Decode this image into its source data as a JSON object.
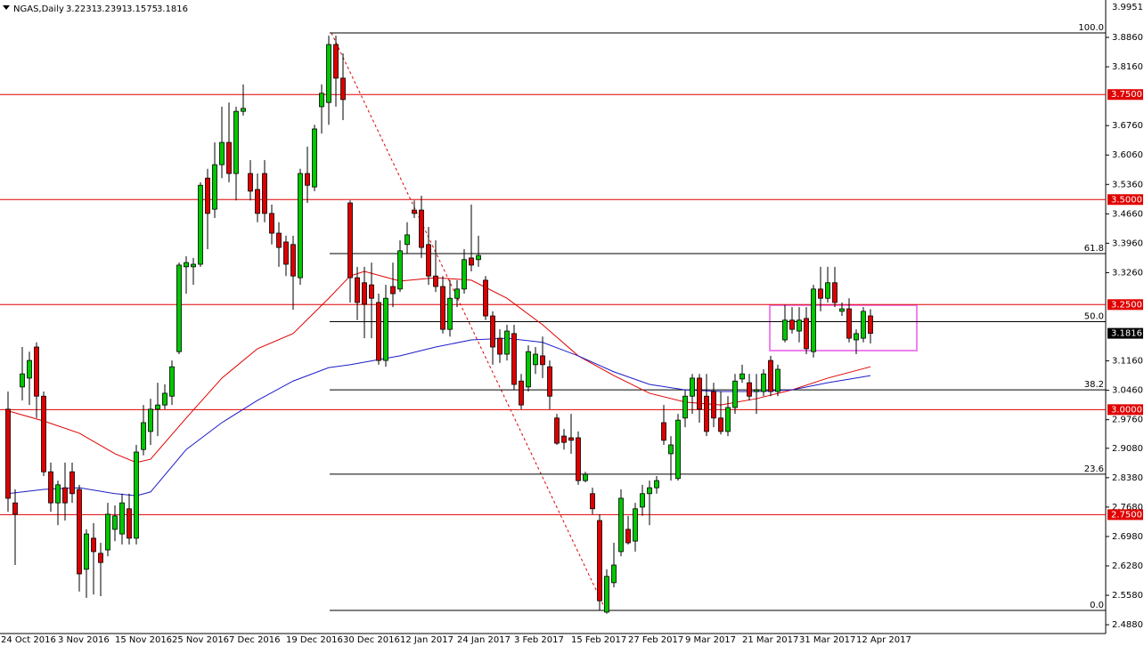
{
  "chart_data": {
    "type": "candlestick",
    "symbol": "NGAS,Daily",
    "up_color": "#00c800",
    "down_color": "#dd0000",
    "categories": [
      "24 Oct 2016",
      null,
      null,
      null,
      null,
      null,
      null,
      null,
      "3 Nov 2016",
      null,
      null,
      null,
      null,
      null,
      null,
      null,
      "15 Nov 2016",
      null,
      null,
      null,
      null,
      null,
      null,
      null,
      "25 Nov 2016",
      null,
      null,
      null,
      null,
      null,
      null,
      null,
      "7 Dec 2016",
      null,
      null,
      null,
      null,
      null,
      null,
      null,
      "19 Dec 2016",
      null,
      null,
      null,
      null,
      null,
      null,
      null,
      "30 Dec 2016",
      null,
      null,
      null,
      null,
      null,
      null,
      null,
      "12 Jan 2017",
      null,
      null,
      null,
      null,
      null,
      null,
      null,
      "24 Jan 2017",
      null,
      null,
      null,
      null,
      null,
      null,
      null,
      "3 Feb 2017",
      null,
      null,
      null,
      null,
      null,
      null,
      null,
      "15 Feb 2017",
      null,
      null,
      null,
      null,
      null,
      null,
      null,
      "27 Feb 2017",
      null,
      null,
      null,
      null,
      null,
      null,
      null,
      "9 Mar 2017",
      null,
      null,
      null,
      null,
      null,
      null,
      null,
      "21 Mar 2017",
      null,
      null,
      null,
      null,
      null,
      null,
      null,
      "31 Mar 2017",
      null,
      null,
      null,
      null,
      null,
      null,
      null,
      "12 Apr 2017",
      null
    ],
    "open": [
      3.001,
      2.778,
      3.054,
      3.075,
      3.149,
      3.032,
      2.852,
      2.778,
      2.814,
      2.852,
      2.81,
      2.62,
      2.694,
      2.658,
      2.666,
      2.715,
      2.704,
      2.764,
      2.694,
      2.905,
      2.948,
      3.001,
      3.011,
      3.032,
      3.138,
      3.34,
      3.34,
      3.346,
      3.551,
      3.477,
      3.583,
      3.636,
      3.562,
      3.71,
      3.562,
      3.524,
      3.562,
      3.467,
      3.42,
      3.399,
      3.393,
      3.314,
      3.562,
      3.53,
      3.721,
      3.731,
      3.869,
      3.789,
      3.492,
      3.314,
      3.302,
      3.297,
      3.255,
      3.117,
      3.293,
      3.287,
      3.393,
      3.475,
      3.475,
      3.393,
      3.318,
      3.293,
      3.191,
      3.265,
      3.287,
      3.361,
      3.357,
      3.308,
      3.223,
      3.17,
      3.132,
      3.181,
      3.068,
      3.054,
      3.107,
      3.128,
      3.102,
      2.98,
      2.937,
      2.933,
      2.933,
      2.831,
      2.8,
      2.736,
      2.518,
      2.588,
      2.662,
      2.715,
      2.687,
      2.768,
      2.8,
      2.814,
      2.969,
      2.895,
      2.836,
      2.98,
      3.032,
      3.075,
      3.032,
      3.043,
      2.98,
      2.948,
      3.005,
      3.073,
      3.064,
      3.043,
      3.043,
      3.117,
      3.043,
      3.166,
      3.213,
      3.187,
      3.217,
      3.138,
      3.287,
      3.265,
      3.302,
      3.234,
      3.24,
      3.166,
      3.17,
      3.2231
    ],
    "high": [
      3.043,
      2.81,
      3.149,
      3.138,
      3.16,
      3.043,
      2.874,
      2.831,
      2.874,
      2.874,
      2.821,
      2.715,
      2.73,
      2.683,
      2.778,
      2.772,
      2.8,
      2.8,
      2.916,
      3.011,
      3.026,
      3.064,
      3.06,
      3.117,
      3.35,
      3.365,
      3.361,
      3.541,
      3.573,
      3.636,
      3.721,
      3.731,
      3.721,
      3.774,
      3.594,
      3.562,
      3.594,
      3.488,
      3.446,
      3.414,
      3.414,
      3.573,
      3.626,
      3.678,
      3.774,
      3.89,
      3.89,
      3.848,
      3.498,
      3.34,
      3.34,
      3.35,
      3.276,
      3.297,
      3.35,
      3.403,
      3.446,
      3.498,
      3.509,
      3.435,
      3.403,
      3.318,
      3.308,
      3.308,
      3.382,
      3.488,
      3.414,
      3.318,
      3.234,
      3.191,
      3.202,
      3.202,
      3.085,
      3.153,
      3.149,
      3.174,
      3.117,
      2.99,
      2.954,
      2.99,
      2.948,
      2.852,
      2.814,
      2.751,
      2.62,
      2.683,
      2.81,
      2.747,
      2.778,
      2.821,
      2.831,
      2.842,
      3.011,
      2.937,
      2.99,
      3.047,
      3.085,
      3.085,
      3.085,
      3.064,
      3.043,
      3.032,
      3.085,
      3.107,
      3.085,
      3.085,
      3.096,
      3.128,
      3.107,
      3.249,
      3.244,
      3.244,
      3.244,
      3.297,
      3.34,
      3.34,
      3.34,
      3.255,
      3.265,
      3.191,
      3.244,
      3.2391
    ],
    "low": [
      2.757,
      2.63,
      3.022,
      3.011,
      2.98,
      2.842,
      2.757,
      2.725,
      2.736,
      2.778,
      2.567,
      2.552,
      2.56,
      2.556,
      2.651,
      2.687,
      2.679,
      2.679,
      2.679,
      2.891,
      2.916,
      2.937,
      3.001,
      3.011,
      3.132,
      3.276,
      3.297,
      3.34,
      3.382,
      3.456,
      3.551,
      3.541,
      3.498,
      3.7,
      3.498,
      3.446,
      3.446,
      3.393,
      3.34,
      3.318,
      3.238,
      3.297,
      3.492,
      3.52,
      3.657,
      3.678,
      3.721,
      3.689,
      3.255,
      3.213,
      3.17,
      3.17,
      3.107,
      3.102,
      3.244,
      3.28,
      3.371,
      3.456,
      3.361,
      3.297,
      3.28,
      3.181,
      3.174,
      3.244,
      3.276,
      3.329,
      3.34,
      3.213,
      3.107,
      3.111,
      3.117,
      3.047,
      3.001,
      3.043,
      3.085,
      3.075,
      3.001,
      2.916,
      2.905,
      2.895,
      2.821,
      2.827,
      2.751,
      2.522,
      2.514,
      2.577,
      2.651,
      2.679,
      2.662,
      2.747,
      2.725,
      2.8,
      2.916,
      2.831,
      2.831,
      2.958,
      2.99,
      2.969,
      2.937,
      2.958,
      2.941,
      2.937,
      2.99,
      3.064,
      3.022,
      2.99,
      3.032,
      3.032,
      3.032,
      3.16,
      3.181,
      3.16,
      3.132,
      3.124,
      3.234,
      3.255,
      3.244,
      3.223,
      3.16,
      3.132,
      3.16,
      3.1575
    ],
    "close": [
      2.789,
      2.751,
      3.085,
      3.117,
      3.032,
      2.852,
      2.778,
      2.821,
      2.778,
      2.8,
      2.609,
      2.704,
      2.662,
      2.636,
      2.751,
      2.747,
      2.778,
      2.694,
      2.899,
      2.969,
      3.001,
      3.011,
      3.039,
      3.102,
      3.344,
      3.35,
      3.346,
      3.534,
      3.467,
      3.583,
      3.636,
      3.562,
      3.71,
      3.717,
      3.52,
      3.467,
      3.467,
      3.42,
      3.386,
      3.346,
      3.318,
      3.562,
      3.534,
      3.668,
      3.753,
      3.869,
      3.789,
      3.738,
      3.314,
      3.255,
      3.251,
      3.265,
      3.117,
      3.265,
      3.276,
      3.378,
      3.416,
      3.467,
      3.386,
      3.318,
      3.293,
      3.191,
      3.265,
      3.287,
      3.357,
      3.344,
      3.367,
      3.223,
      3.149,
      3.132,
      3.187,
      3.06,
      3.011,
      3.138,
      3.132,
      3.107,
      3.032,
      2.92,
      2.922,
      2.927,
      2.831,
      2.846,
      2.764,
      2.545,
      2.603,
      2.63,
      2.789,
      2.683,
      2.764,
      2.8,
      2.814,
      2.831,
      2.927,
      2.916,
      2.975,
      3.032,
      3.075,
      3.001,
      2.948,
      2.98,
      2.948,
      3.005,
      3.068,
      3.085,
      3.032,
      3.047,
      3.085,
      3.043,
      3.096,
      3.213,
      3.191,
      3.213,
      3.145,
      3.287,
      3.265,
      3.302,
      3.255,
      3.24,
      3.17,
      3.181,
      3.234,
      3.1816
    ],
    "moving_averages": [
      {
        "color": "#e00000",
        "x": [
          0,
          5,
          10,
          15,
          18,
          20,
          25,
          30,
          35,
          40,
          45,
          48,
          50,
          55,
          60,
          65,
          70,
          75,
          80,
          85,
          90,
          95,
          100,
          105,
          110,
          115,
          121
        ],
        "values": [
          2.997,
          2.973,
          2.944,
          2.895,
          2.874,
          2.882,
          2.98,
          3.075,
          3.145,
          3.181,
          3.265,
          3.318,
          3.329,
          3.306,
          3.314,
          3.308,
          3.265,
          3.202,
          3.128,
          3.081,
          3.039,
          3.018,
          3.011,
          3.026,
          3.047,
          3.075,
          3.102
        ]
      },
      {
        "color": "#1c1cc8",
        "x": [
          0,
          5,
          10,
          15,
          18,
          20,
          25,
          30,
          35,
          40,
          45,
          48,
          50,
          55,
          60,
          65,
          70,
          75,
          80,
          85,
          90,
          95,
          100,
          105,
          110,
          115,
          121
        ],
        "values": [
          2.8,
          2.81,
          2.814,
          2.8,
          2.795,
          2.804,
          2.905,
          2.969,
          3.022,
          3.068,
          3.1,
          3.107,
          3.113,
          3.128,
          3.149,
          3.166,
          3.17,
          3.16,
          3.128,
          3.09,
          3.06,
          3.047,
          3.043,
          3.043,
          3.047,
          3.064,
          3.081
        ]
      }
    ],
    "levels": {
      "color": "#e00000",
      "prices": [
        {
          "value": 3.75,
          "label": "3.7500"
        },
        {
          "value": 3.5,
          "label": "3.5000"
        },
        {
          "value": 3.25,
          "label": "3.2500"
        },
        {
          "value": 3.0,
          "label": "3.0000"
        },
        {
          "value": 2.75,
          "label": "2.7500"
        }
      ]
    },
    "fibonacci": {
      "price_0": 2.522,
      "price_100": 3.8966,
      "levels": [
        {
          "value": 100,
          "label": "100.0"
        },
        61.8,
        {
          "value": 50,
          "label": "50.0"
        },
        38.2,
        23.6,
        {
          "value": 0,
          "label": "0.0"
        }
      ]
    },
    "ylim": [
      2.467,
      3.975
    ],
    "axis_top_label": "3.9951",
    "yticks": [
      {
        "value": 3.886,
        "label": "3.8860"
      },
      {
        "value": 3.816,
        "label": "3.8160"
      },
      {
        "value": 3.676,
        "label": "3.6760"
      },
      {
        "value": 3.606,
        "label": "3.6060"
      },
      {
        "value": 3.536,
        "label": "3.5360"
      },
      {
        "value": 3.466,
        "label": "3.4660"
      },
      {
        "value": 3.396,
        "label": "3.3960"
      },
      {
        "value": 3.326,
        "label": "3.3260"
      },
      {
        "value": 3.116,
        "label": "3.1160"
      },
      {
        "value": 3.046,
        "label": "3.0460"
      },
      {
        "value": 2.976,
        "label": "2.9760"
      },
      {
        "value": 2.908,
        "label": "2.9080"
      },
      {
        "value": 2.838,
        "label": "2.8380"
      },
      {
        "value": 2.768,
        "label": "2.7680"
      },
      {
        "value": 2.698,
        "label": "2.6980"
      },
      {
        "value": 2.628,
        "label": "2.6280"
      },
      {
        "value": 2.558,
        "label": "2.5580"
      },
      {
        "value": 2.488,
        "label": "2.4880"
      }
    ]
  }
}
